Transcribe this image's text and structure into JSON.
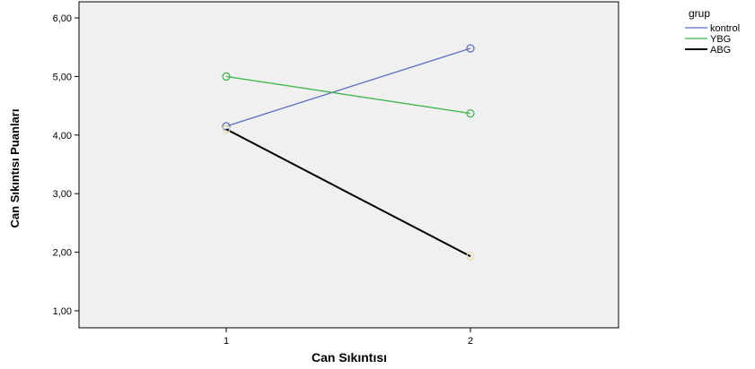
{
  "chart_data": {
    "type": "line",
    "title": "",
    "xlabel": "Can Sıkıntısı",
    "ylabel": "Can Sıkıntısı Puanları",
    "categories": [
      "1",
      "2"
    ],
    "yticks": [
      "1,00",
      "2,00",
      "3,00",
      "4,00",
      "5,00",
      "6,00"
    ],
    "ylim": [
      0.8,
      6.05
    ],
    "grid": false,
    "legend": {
      "title": "grup",
      "position": "top-right"
    },
    "series": [
      {
        "name": "kontrol",
        "values": [
          4.15,
          5.48
        ],
        "color": "#5b6fbf"
      },
      {
        "name": "YBG",
        "values": [
          5.0,
          4.37
        ],
        "color": "#3cb84a"
      },
      {
        "name": "ABG",
        "values": [
          4.1,
          1.93
        ],
        "color": "#000000",
        "marker_color": "#e8e0a0"
      }
    ],
    "plot_background": "#f0f0f0"
  }
}
